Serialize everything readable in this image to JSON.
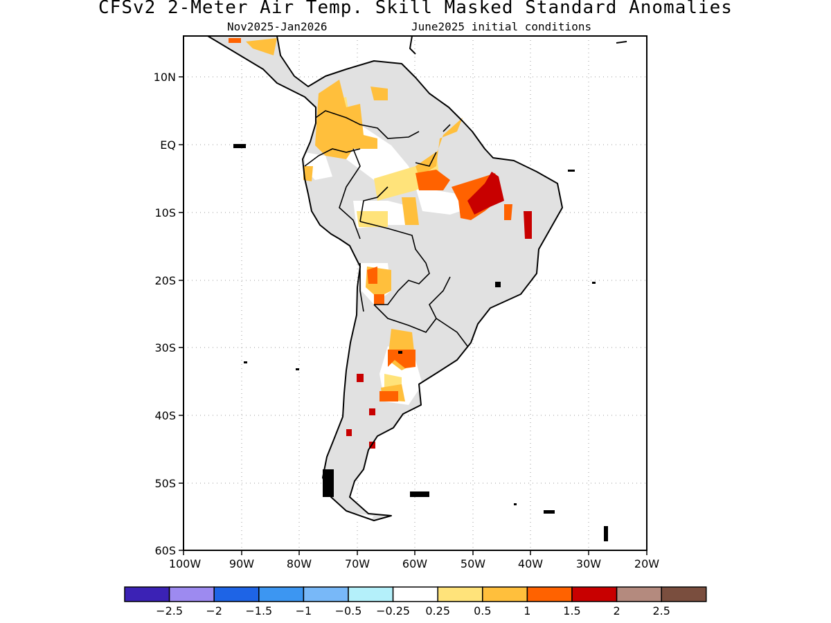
{
  "header": {
    "title": "CFSv2 2-Meter Air Temp. Skill Masked Standard Anomalies",
    "period": "Nov2025-Jan2026",
    "init": "June2025 initial conditions"
  },
  "map": {
    "lon_range": [
      -100,
      -20
    ],
    "lat_range": [
      -60,
      15
    ],
    "lat_ticks": [
      "10N",
      "EQ",
      "10S",
      "20S",
      "30S",
      "40S",
      "50S",
      "60S"
    ],
    "lon_ticks": [
      "100W",
      "90W",
      "80W",
      "70W",
      "60W",
      "50W",
      "40W",
      "30W",
      "20W"
    ],
    "grid": true,
    "land_mask_color": "#e1e1e1"
  },
  "colorbar": {
    "colors": [
      "#3b22b5",
      "#9d8af0",
      "#1e64e6",
      "#3c96f2",
      "#78b8f8",
      "#b4f0fa",
      "#ffffff",
      "#ffe37a",
      "#ffbf3c",
      "#ff6200",
      "#c80000",
      "#b48a7e",
      "#7a4e3e"
    ],
    "labels": [
      "-2.5",
      "-2",
      "-1.5",
      "-1",
      "-0.5",
      "-0.25",
      "0.25",
      "0.5",
      "1",
      "1.5",
      "2",
      "2.5"
    ]
  }
}
